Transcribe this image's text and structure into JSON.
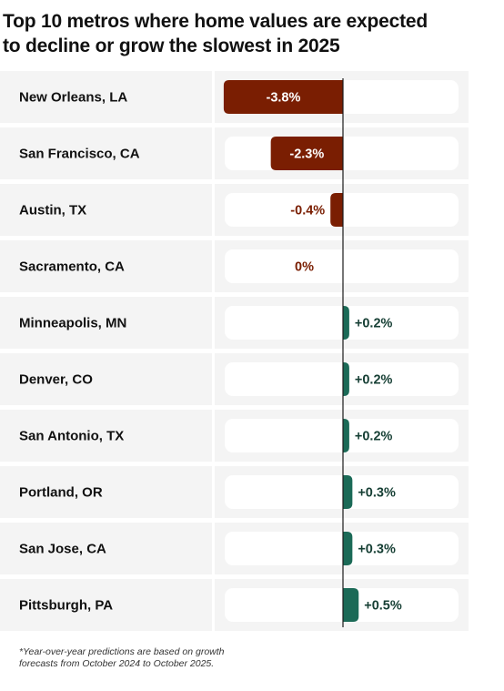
{
  "title_lines": [
    "Top 10 metros where home values are expected",
    "to decline or grow the slowest in 2025"
  ],
  "footnote_lines": [
    "*Year-over-year predictions are based on growth",
    "forecasts from October 2024 to October 2025."
  ],
  "colors": {
    "negative": "#7a1e02",
    "positive": "#1b6a57",
    "row_background": "#f4f4f4",
    "track": "#ffffff",
    "text": "#111111"
  },
  "chart_data": {
    "type": "bar",
    "orientation": "horizontal",
    "title": "Top 10 metros where home values are expected to decline or grow the slowest in 2025",
    "categories": [
      "New Orleans, LA",
      "San Francisco, CA",
      "Austin, TX",
      "Sacramento, CA",
      "Minneapolis, MN",
      "Denver, CO",
      "San Antonio, TX",
      "Portland, OR",
      "San Jose, CA",
      "Pittsburgh, PA"
    ],
    "values": [
      -3.8,
      -2.3,
      -0.4,
      0,
      0.2,
      0.2,
      0.2,
      0.3,
      0.3,
      0.5
    ],
    "value_labels": [
      "-3.8%",
      "-2.3%",
      "-0.4%",
      "0%",
      "+0.2%",
      "+0.2%",
      "+0.2%",
      "+0.3%",
      "+0.3%",
      "+0.5%"
    ],
    "xlabel": "",
    "ylabel": "",
    "grid": false,
    "legend": "none"
  }
}
